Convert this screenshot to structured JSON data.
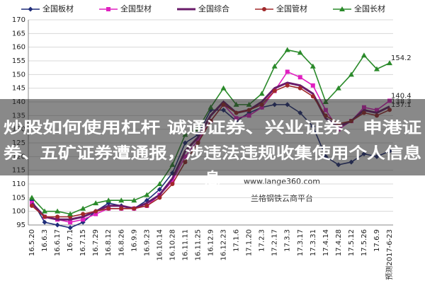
{
  "chart_data": {
    "type": "line",
    "categories": [
      "16.5.20",
      "16.6.3",
      "16.6.17",
      "16.7.1",
      "16.7.15",
      "16.7.29",
      "16.8.12",
      "16.8.26",
      "16.9.9",
      "16.9.23",
      "16.10.14",
      "16.10.28",
      "16.11.11",
      "16.11.25",
      "16.12.9",
      "16.12.23",
      "17.1.6",
      "17.1.20",
      "17.2.3",
      "17.2.17",
      "17.3.3",
      "17.3.17",
      "17.3.31",
      "17.4.14",
      "17.4.28",
      "17.5.12",
      "17.5.26",
      "17.6.9",
      "预测2017-6-23"
    ],
    "series": [
      {
        "name": "全国板材",
        "color": "#1f2d7a",
        "marker": "diamond",
        "label_last": false,
        "values": [
          104,
          96,
          95,
          94,
          96,
          100,
          103,
          102,
          101,
          104,
          108,
          114,
          125,
          128,
          137,
          137,
          133,
          136,
          138,
          139,
          139,
          136,
          131,
          120,
          117,
          118,
          121,
          120,
          122
        ]
      },
      {
        "name": "全国型材",
        "color": "#e020c0",
        "marker": "square",
        "label_last": true,
        "values": [
          103,
          98,
          97,
          96,
          97,
          99,
          101,
          101,
          101,
          102,
          106,
          111,
          120,
          126,
          133,
          139,
          134,
          135,
          138,
          144,
          151,
          149,
          146,
          137,
          130,
          133,
          138,
          137,
          140.4
        ]
      },
      {
        "name": "全国综合",
        "color": "#6a1b6a",
        "marker": "none",
        "label_last": true,
        "values": [
          103,
          98,
          97,
          97,
          98,
          100,
          102,
          102,
          101,
          103,
          106,
          112,
          122,
          127,
          135,
          140,
          136,
          137,
          140,
          145,
          147,
          146,
          143,
          134,
          131,
          133,
          137,
          136,
          138.3
        ]
      },
      {
        "name": "全国管材",
        "color": "#a0282a",
        "marker": "circle",
        "label_last": true,
        "values": [
          102,
          98,
          98,
          98,
          99,
          100,
          101,
          101,
          101,
          102,
          105,
          110,
          118,
          125,
          133,
          139,
          136,
          137,
          139,
          144,
          146,
          145,
          142,
          135,
          132,
          133,
          136,
          135,
          137.1
        ]
      },
      {
        "name": "全国长材",
        "color": "#2a8a2a",
        "marker": "triangle",
        "label_last": true,
        "values": [
          105,
          100,
          100,
          99,
          101,
          103,
          104,
          104,
          104,
          106,
          110,
          117,
          128,
          130,
          138,
          145,
          139,
          139,
          143,
          153,
          159,
          158,
          153,
          140,
          145,
          150,
          157,
          152,
          154.2
        ]
      }
    ],
    "ylim": [
      95,
      170
    ],
    "yticks": [
      95,
      100,
      105,
      110,
      115,
      120,
      125,
      130,
      135,
      140,
      145,
      150,
      155,
      160,
      165,
      170
    ],
    "grid": true,
    "watermark": [
      "www.lange360.com",
      "兰格钢铁云商平台"
    ]
  },
  "overlay": {
    "lines": [
      "炒股如何使用杠杆 诚通证券、兴业证券、申港证",
      "券、五矿证券遭通报，涉违法违规收集使用个人信息",
      "息"
    ]
  }
}
